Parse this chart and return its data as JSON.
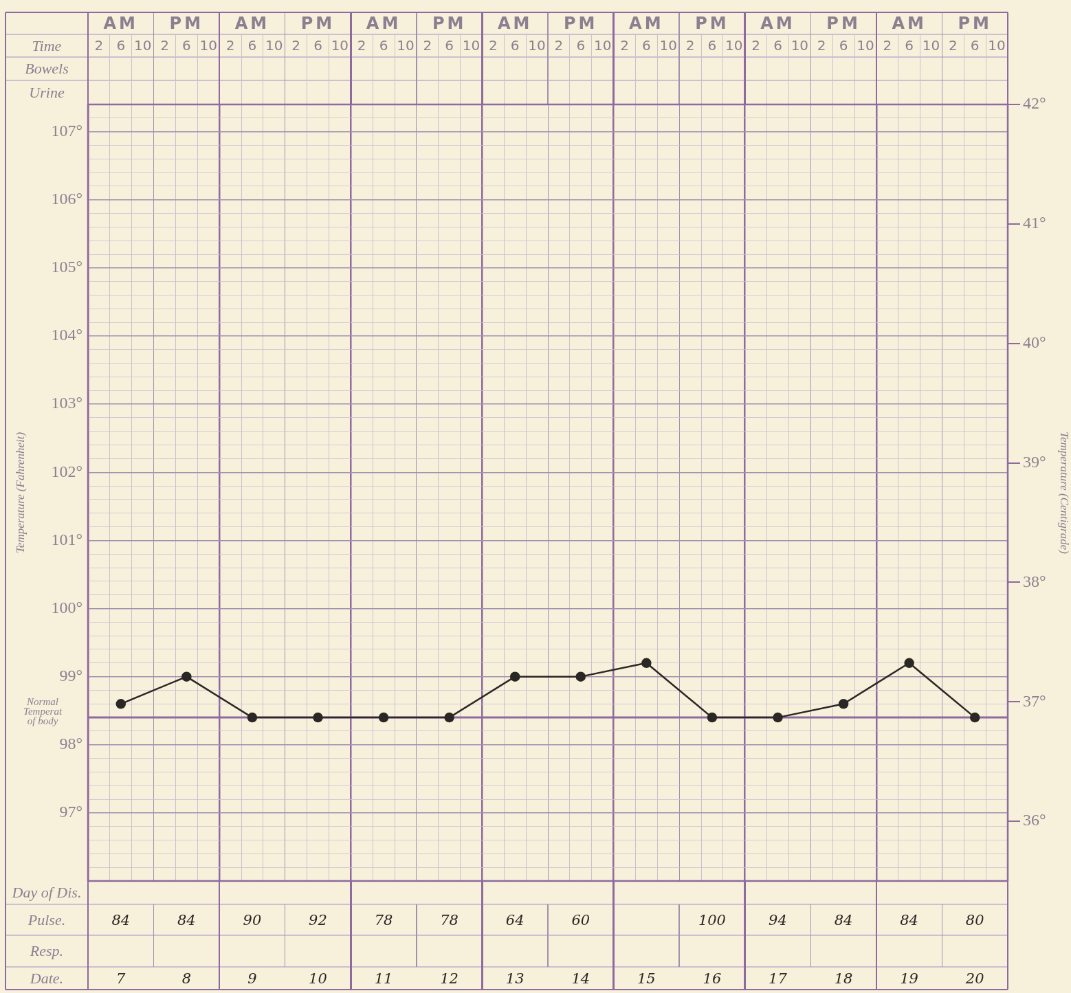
{
  "chart_data": [
    {
      "type": "line",
      "xlabel": "Time",
      "ylabel": "Temperature (Fahrenheit)",
      "y2label": "Temperature (Centigrade)",
      "annotations": [
        "Bowels",
        "Urine",
        "AM",
        "PM",
        "AM",
        "PM",
        "AM",
        "PM",
        "AM",
        "PM",
        "AM",
        "PM",
        "AM",
        "PM",
        "AM",
        "PM"
      ],
      "categories": [
        "2",
        "6",
        "10",
        "2",
        "6",
        "10",
        "2",
        "6",
        "10",
        "2",
        "6",
        "10",
        "2",
        "6",
        "10",
        "2",
        "6",
        "10",
        "2",
        "6",
        "10",
        "2",
        "6",
        "10",
        "2",
        "6",
        "10",
        "2",
        "6",
        "10",
        "2",
        "6",
        "10",
        "2",
        "6",
        "10",
        "2",
        "6",
        "10",
        "2",
        "6",
        "10"
      ],
      "series": [
        {
          "color": "#2b2724",
          "values": [
            null,
            98.6,
            null,
            null,
            99.0,
            null,
            null,
            98.4,
            null,
            null,
            98.4,
            null,
            null,
            98.4,
            null,
            null,
            98.4,
            null,
            null,
            99.0,
            null,
            null,
            99.0,
            null,
            null,
            99.2,
            null,
            null,
            98.4,
            null,
            null,
            98.4,
            null,
            null,
            98.6,
            null,
            null,
            99.2,
            null,
            null,
            98.4,
            null
          ]
        }
      ],
      "ylim": [
        96,
        107.4
      ],
      "yticks": [
        {
          "value": 96,
          "label": null
        },
        {
          "value": 96.2,
          "label": null
        },
        {
          "value": 96.4,
          "label": null
        },
        {
          "value": 96.6,
          "label": null
        },
        {
          "value": 96.8,
          "label": null
        },
        {
          "value": 97,
          "label": "97°"
        },
        {
          "value": 97.2,
          "label": null
        },
        {
          "value": 97.4,
          "label": null
        },
        {
          "value": 97.6,
          "label": null
        },
        {
          "value": 97.8,
          "label": null
        },
        {
          "value": 98,
          "label": "98°"
        },
        {
          "value": 98.2,
          "label": null
        },
        {
          "value": 98.4,
          "label": null
        },
        {
          "value": 98.6,
          "label": null
        },
        {
          "value": 98.8,
          "label": null
        },
        {
          "value": 99,
          "label": "99°"
        },
        {
          "value": 99.2,
          "label": null
        },
        {
          "value": 99.4,
          "label": null
        },
        {
          "value": 99.6,
          "label": null
        },
        {
          "value": 99.8,
          "label": null
        },
        {
          "value": 100,
          "label": "100°"
        },
        {
          "value": 100.2,
          "label": null
        },
        {
          "value": 100.4,
          "label": null
        },
        {
          "value": 100.6,
          "label": null
        },
        {
          "value": 100.8,
          "label": null
        },
        {
          "value": 101,
          "label": "101°"
        },
        {
          "value": 101.2,
          "label": null
        },
        {
          "value": 101.4,
          "label": null
        },
        {
          "value": 101.6,
          "label": null
        },
        {
          "value": 101.8,
          "label": null
        },
        {
          "value": 102,
          "label": "102°"
        },
        {
          "value": 102.2,
          "label": null
        },
        {
          "value": 102.4,
          "label": null
        },
        {
          "value": 102.6,
          "label": null
        },
        {
          "value": 102.8,
          "label": null
        },
        {
          "value": 103,
          "label": "103°"
        },
        {
          "value": 103.2,
          "label": null
        },
        {
          "value": 103.4,
          "label": null
        },
        {
          "value": 103.6,
          "label": null
        },
        {
          "value": 103.8,
          "label": null
        },
        {
          "value": 104,
          "label": "104°"
        },
        {
          "value": 104.2,
          "label": null
        },
        {
          "value": 104.4,
          "label": null
        },
        {
          "value": 104.6,
          "label": null
        },
        {
          "value": 104.8,
          "label": null
        },
        {
          "value": 105,
          "label": "105°"
        },
        {
          "value": 105.2,
          "label": null
        },
        {
          "value": 105.4,
          "label": null
        },
        {
          "value": 105.6,
          "label": null
        },
        {
          "value": 105.8,
          "label": null
        },
        {
          "value": 106,
          "label": "106°"
        },
        {
          "value": 106.2,
          "label": null
        },
        {
          "value": 106.4,
          "label": null
        },
        {
          "value": 106.6,
          "label": null
        },
        {
          "value": 106.8,
          "label": null
        },
        {
          "value": 107,
          "label": "107°"
        },
        {
          "value": 107.2,
          "label": null
        },
        {
          "value": 107.4,
          "label": null
        }
      ],
      "y2lim": [
        35.5,
        42
      ],
      "y2ticks": [
        {
          "value": 36,
          "label": "36°"
        },
        {
          "value": 37,
          "label": "37°"
        },
        {
          "value": 38,
          "label": "38°"
        },
        {
          "value": 39,
          "label": "39°"
        },
        {
          "value": 40,
          "label": "40°"
        },
        {
          "value": 41,
          "label": "41°"
        },
        {
          "value": 42,
          "label": "42°"
        }
      ],
      "ref_lines": [
        {
          "axis": "y",
          "value": 98.4,
          "label": "Normal Temperat of body",
          "color": "#8e6a9e"
        }
      ],
      "grid": true,
      "marker": "circle",
      "line_style": "solid"
    },
    {
      "type": "heatmap",
      "xlabel": "Date.",
      "categories": [
        "7",
        "8",
        "9",
        "10",
        "11",
        "12",
        "13",
        "14",
        "15",
        "16",
        "17",
        "18",
        "19",
        "20"
      ],
      "y_categories": [
        "Day of Dis.",
        "Pulse.",
        "Resp."
      ],
      "cells": [
        [
          null,
          null,
          null,
          null,
          null,
          null,
          null,
          null,
          null,
          null,
          null,
          null,
          null,
          null
        ],
        [
          84,
          84,
          90,
          92,
          78,
          78,
          64,
          60,
          null,
          100,
          94,
          84,
          84,
          80
        ],
        [
          null,
          null,
          null,
          null,
          null,
          null,
          null,
          null,
          null,
          null,
          null,
          null,
          null,
          null
        ]
      ],
      "data_labels": true
    }
  ]
}
